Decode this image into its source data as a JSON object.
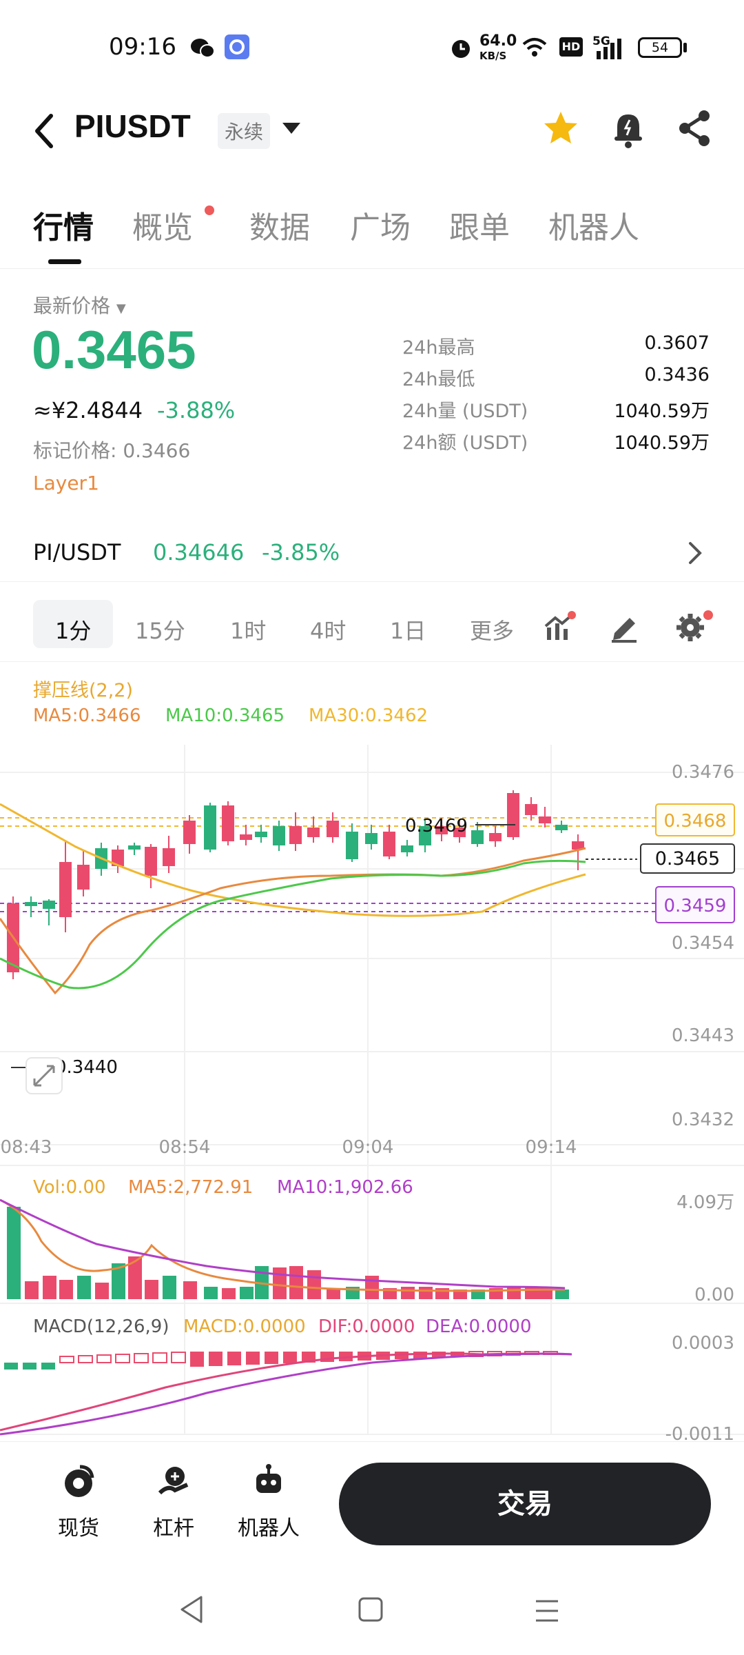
{
  "status_bar": {
    "time": "09:16",
    "speed_value": "64.0",
    "speed_unit": "KB/S",
    "hd": "HD",
    "network": "5G",
    "battery": "54"
  },
  "header": {
    "symbol": "PIUSDT",
    "badge": "永续"
  },
  "tabs": [
    {
      "label": "行情",
      "active": true
    },
    {
      "label": "概览",
      "dot": true
    },
    {
      "label": "数据"
    },
    {
      "label": "广场"
    },
    {
      "label": "跟单"
    },
    {
      "label": "机器人"
    }
  ],
  "price": {
    "latest_label": "最新价格",
    "value": "0.3465",
    "cny": "≈¥2.4844",
    "change_pct": "-3.88%",
    "mark_price": "标记价格: 0.3466",
    "tag": "Layer1",
    "stats": [
      {
        "label": "24h最高",
        "value": "0.3607"
      },
      {
        "label": "24h最低",
        "value": "0.3436"
      },
      {
        "label": "24h量 (USDT)",
        "value": "1040.59万"
      },
      {
        "label": "24h额 (USDT)",
        "value": "1040.59万"
      }
    ]
  },
  "pair": {
    "name": "PI/USDT",
    "price": "0.34646",
    "change": "-3.85%"
  },
  "timeframes": [
    "1分",
    "15分",
    "1时",
    "4时",
    "1日",
    "更多"
  ],
  "chart": {
    "indicator_title": "撑压线(2,2)",
    "ma5": "MA5:0.3466",
    "ma10": "MA10:0.3465",
    "ma30": "MA30:0.3462",
    "y_ticks": [
      "0.3476",
      "0.3454",
      "0.3443",
      "0.3432"
    ],
    "price_tags": {
      "upper": "0.3468",
      "current": "0.3465",
      "lower": "0.3459"
    },
    "high_marker": "0.3469",
    "low_marker": "0.3440",
    "x_ticks": [
      "08:43",
      "08:54",
      "09:04",
      "09:14"
    ],
    "vol_label": "Vol:0.00",
    "vol_ma5": "MA5:2,772.91",
    "vol_ma10": "MA10:1,902.66",
    "vol_max": "4.09万",
    "vol_min": "0.00",
    "macd_title": "MACD(12,26,9)",
    "macd_val": "MACD:0.0000",
    "dif": "DIF:0.0000",
    "dea": "DEA:0.0000",
    "macd_max": "0.0003",
    "macd_min": "-0.0011"
  },
  "colors": {
    "up": "#2bb07b",
    "down": "#ea4b6c",
    "ma5": "#e8893e",
    "ma10": "#4cc84a",
    "ma30": "#f0b72f",
    "support": "#a23fd0"
  },
  "bottom_nav": [
    {
      "label": "现货"
    },
    {
      "label": "杠杆"
    },
    {
      "label": "机器人"
    }
  ],
  "trade_button": "交易"
}
